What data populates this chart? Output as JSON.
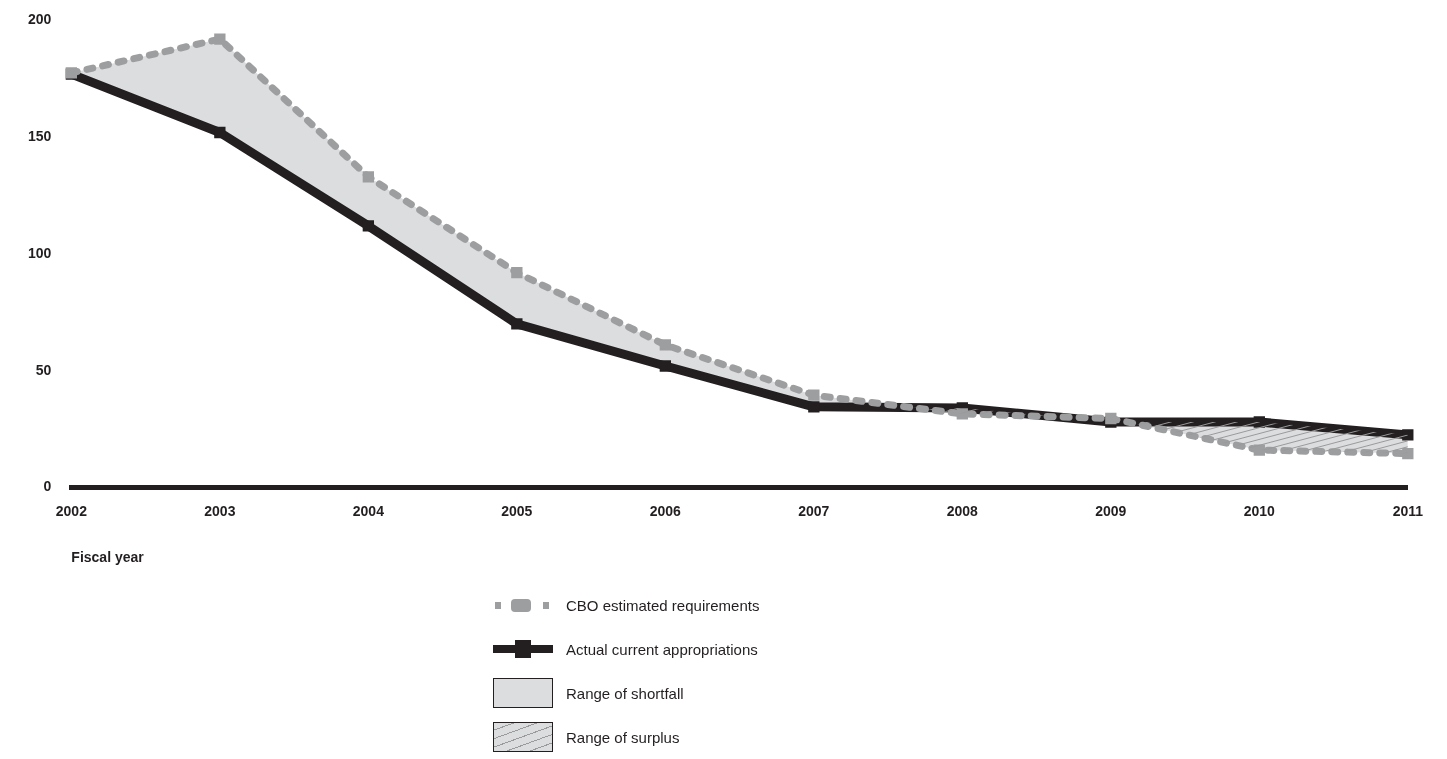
{
  "chart_data": {
    "type": "line",
    "xlabel": "Fiscal year",
    "categories": [
      "2002",
      "2003",
      "2004",
      "2005",
      "2006",
      "2007",
      "2008",
      "2009",
      "2010",
      "2011"
    ],
    "series": [
      {
        "name": "CBO estimated requirements",
        "color": "#9d9ea0",
        "line_style": "dotted",
        "marker": "square",
        "values": [
          177.5,
          192,
          133,
          92,
          61,
          39.5,
          31.5,
          29.5,
          16,
          14.5
        ]
      },
      {
        "name": "Actual current appropriations",
        "color": "#231f20",
        "line_style": "solid",
        "marker": "square",
        "values": [
          177,
          152,
          112,
          70,
          52,
          34.5,
          34,
          28,
          28,
          22.5
        ]
      }
    ],
    "annotations": [
      "Range of shortfall",
      "Range of surplus"
    ],
    "ylim": [
      0,
      200
    ],
    "yticks": [
      0,
      50,
      100,
      150,
      200
    ],
    "grid": false,
    "legend": "bottom"
  }
}
